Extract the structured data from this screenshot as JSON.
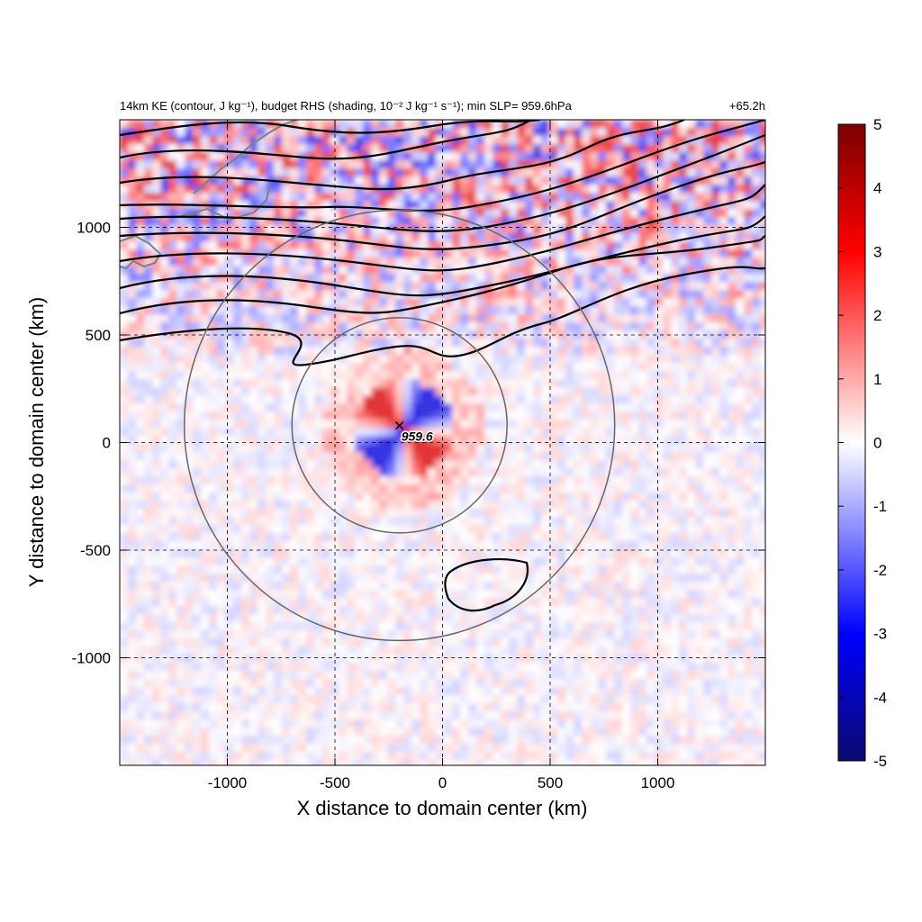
{
  "chart_data": {
    "type": "heatmap",
    "title_left": "14km KE (contour, J kg⁻¹), budget RHS (shading, 10⁻² J kg⁻¹ s⁻¹); min SLP= 959.6hPa",
    "title_right": "+65.2h",
    "xlabel": "X distance to domain center (km)",
    "ylabel": "Y distance to domain center (km)",
    "xlim": [
      -1500,
      1500
    ],
    "ylim": [
      -1500,
      1500
    ],
    "xticks": [
      -1000,
      -500,
      0,
      500,
      1000
    ],
    "yticks": [
      -1000,
      -500,
      0,
      500,
      1000
    ],
    "xtick_labels": [
      "-1000",
      "-500",
      "0",
      "500",
      "1000"
    ],
    "ytick_labels": [
      "-1000",
      "-500",
      "0",
      "500",
      "1000"
    ],
    "grid": true,
    "colorbar": {
      "min": -5,
      "max": 5,
      "ticks": [
        5,
        4,
        3,
        2,
        1,
        0,
        -1,
        -2,
        -3,
        -4,
        -5
      ],
      "tick_labels": [
        "5",
        "4",
        "3",
        "2",
        "1",
        "0",
        "-1",
        "-2",
        "-3",
        "-4",
        "-5"
      ],
      "colormap": [
        "#0a0a6e",
        "#0000ff",
        "#ffffff",
        "#ff0000",
        "#7a0000"
      ]
    },
    "storm_center": {
      "x": -200,
      "y": 80,
      "label": "959.6"
    },
    "range_circles_km": [
      500,
      1000
    ],
    "colors": {
      "contour": "#000000",
      "range_circle": "#666666",
      "coastline": "#808080",
      "grid": "#000000"
    }
  }
}
